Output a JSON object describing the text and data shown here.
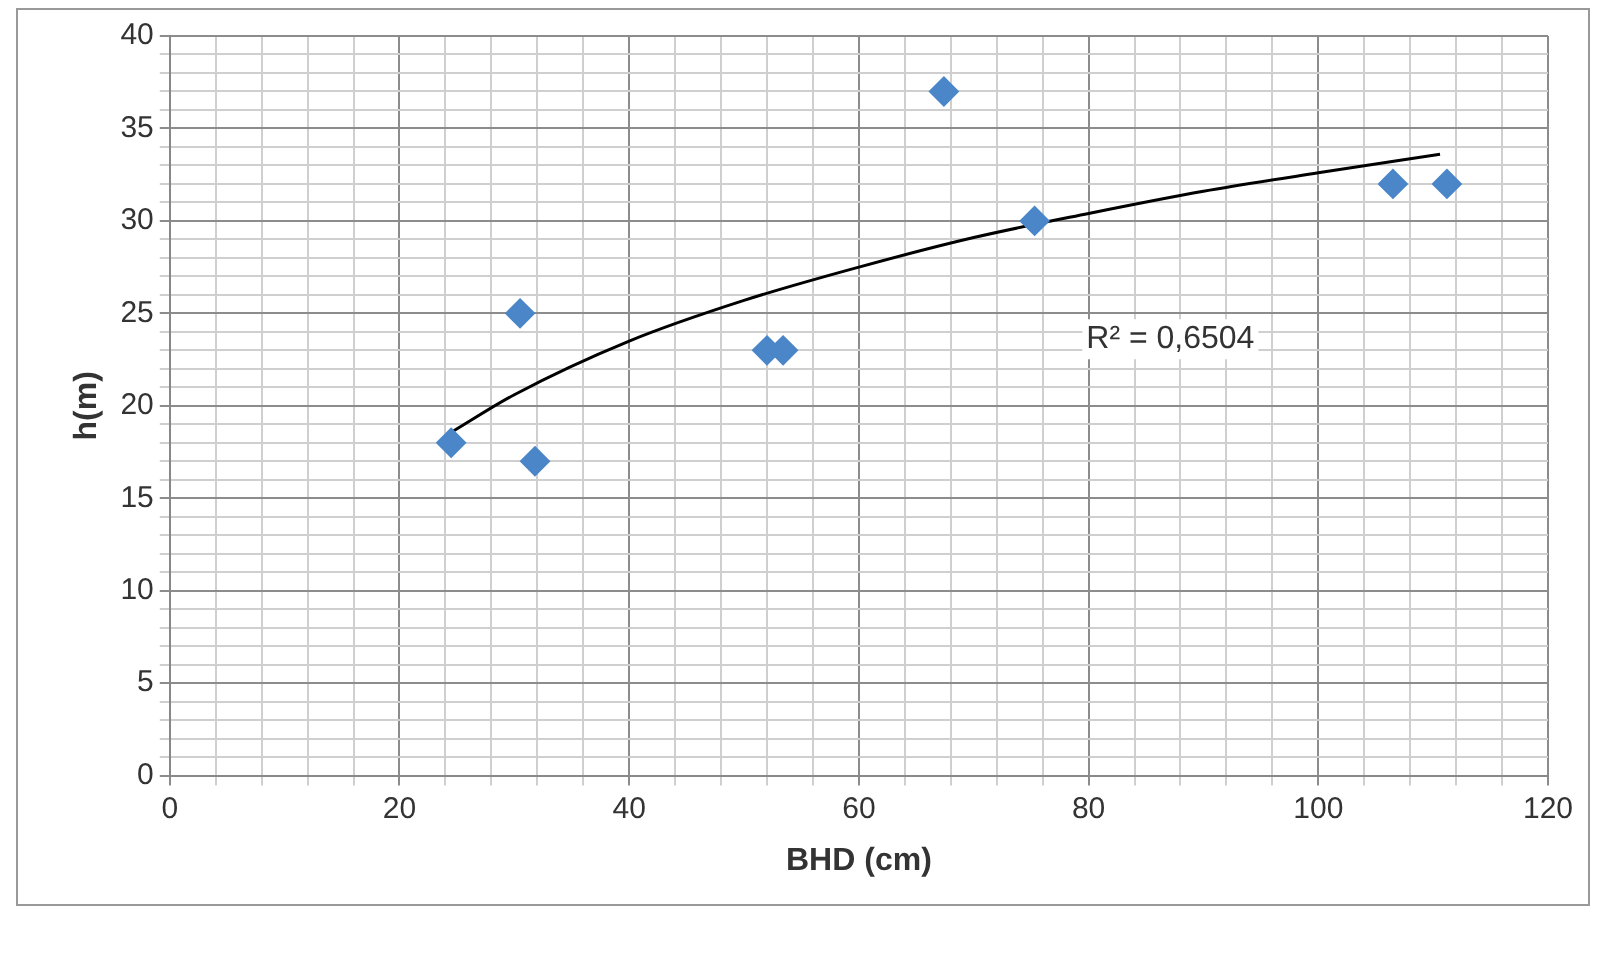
{
  "chart_data": {
    "type": "scatter",
    "xlabel": "BHD (cm)",
    "ylabel": "h(m)",
    "marker": "diamond",
    "grid": true,
    "legend": false,
    "annotations": [
      "R² = 0,6504"
    ],
    "xlim": [
      0,
      120
    ],
    "ylim": [
      0,
      40
    ],
    "xticks": [
      0,
      {
        "value": 4,
        "label": null
      },
      {
        "value": 8,
        "label": null
      },
      {
        "value": 12,
        "label": null
      },
      {
        "value": 16,
        "label": null
      },
      20,
      {
        "value": 24,
        "label": null
      },
      {
        "value": 28,
        "label": null
      },
      {
        "value": 32,
        "label": null
      },
      {
        "value": 36,
        "label": null
      },
      40,
      {
        "value": 44,
        "label": null
      },
      {
        "value": 48,
        "label": null
      },
      {
        "value": 52,
        "label": null
      },
      {
        "value": 56,
        "label": null
      },
      60,
      {
        "value": 64,
        "label": null
      },
      {
        "value": 68,
        "label": null
      },
      {
        "value": 72,
        "label": null
      },
      {
        "value": 76,
        "label": null
      },
      80,
      {
        "value": 84,
        "label": null
      },
      {
        "value": 88,
        "label": null
      },
      {
        "value": 92,
        "label": null
      },
      {
        "value": 96,
        "label": null
      },
      100,
      {
        "value": 104,
        "label": null
      },
      {
        "value": 108,
        "label": null
      },
      {
        "value": 112,
        "label": null
      },
      {
        "value": 116,
        "label": null
      },
      120
    ],
    "yticks": [
      0,
      {
        "value": 1,
        "label": null
      },
      {
        "value": 2,
        "label": null
      },
      {
        "value": 3,
        "label": null
      },
      {
        "value": 4,
        "label": null
      },
      5,
      {
        "value": 6,
        "label": null
      },
      {
        "value": 7,
        "label": null
      },
      {
        "value": 8,
        "label": null
      },
      {
        "value": 9,
        "label": null
      },
      10,
      {
        "value": 11,
        "label": null
      },
      {
        "value": 12,
        "label": null
      },
      {
        "value": 13,
        "label": null
      },
      {
        "value": 14,
        "label": null
      },
      15,
      {
        "value": 16,
        "label": null
      },
      {
        "value": 17,
        "label": null
      },
      {
        "value": 18,
        "label": null
      },
      {
        "value": 19,
        "label": null
      },
      20,
      {
        "value": 21,
        "label": null
      },
      {
        "value": 22,
        "label": null
      },
      {
        "value": 23,
        "label": null
      },
      {
        "value": 24,
        "label": null
      },
      25,
      {
        "value": 26,
        "label": null
      },
      {
        "value": 27,
        "label": null
      },
      {
        "value": 28,
        "label": null
      },
      {
        "value": 29,
        "label": null
      },
      30,
      {
        "value": 31,
        "label": null
      },
      {
        "value": 32,
        "label": null
      },
      {
        "value": 33,
        "label": null
      },
      {
        "value": 34,
        "label": null
      },
      35,
      {
        "value": 36,
        "label": null
      },
      {
        "value": 37,
        "label": null
      },
      {
        "value": 38,
        "label": null
      },
      {
        "value": 39,
        "label": null
      },
      40
    ],
    "series": [
      {
        "type": "scatter",
        "color": "#4a86c8",
        "x": [
          24.5,
          30.5,
          31.8,
          52,
          53.4,
          67.4,
          75.3,
          106.5,
          111.2
        ],
        "values": [
          18,
          25,
          17,
          23,
          23,
          37,
          30,
          32,
          32
        ]
      },
      {
        "type": "line",
        "color": "#000000",
        "marker": "none",
        "x": [
          24.6,
          30,
          40,
          50,
          60,
          70,
          80,
          90,
          100,
          110.6
        ],
        "values": [
          18.6,
          20.6,
          23.5,
          25.7,
          27.5,
          29.1,
          30.4,
          31.6,
          32.6,
          33.6
        ]
      }
    ]
  }
}
